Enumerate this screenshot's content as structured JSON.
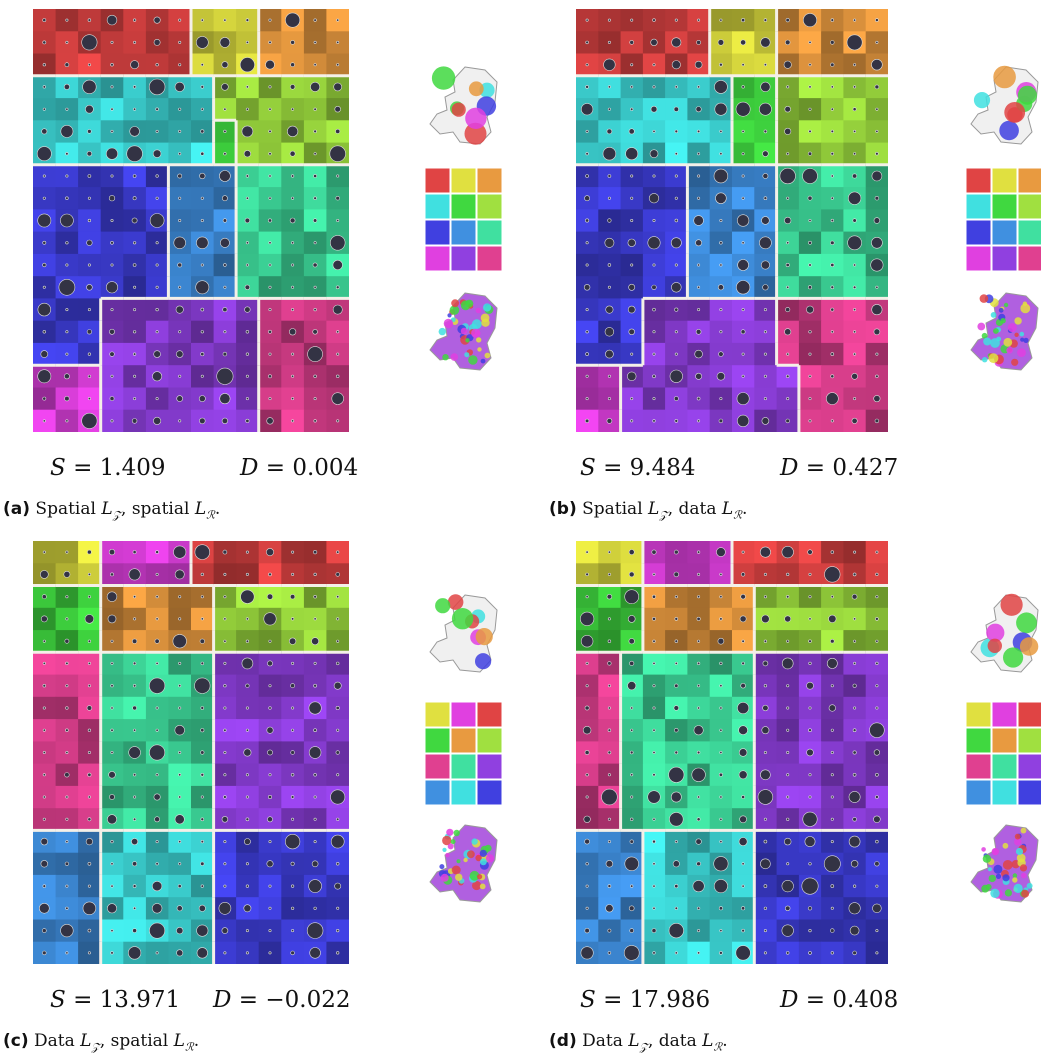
{
  "panels": [
    {
      "id": "a",
      "S": "1.409",
      "D": "0.004",
      "label": "(a)",
      "caption": "Spatial L_Z, spatial L_R."
    },
    {
      "id": "b",
      "S": "9.484",
      "D": "0.427",
      "label": "(b)",
      "caption": "Spatial L_Z, data L_R."
    },
    {
      "id": "c",
      "S": "13.971",
      "D": "−0.022",
      "label": "(c)",
      "caption": "Data L_Z, spatial L_R."
    },
    {
      "id": "d",
      "S": "17.986",
      "D": "0.408",
      "label": "(d)",
      "caption": "Data L_Z, data L_R."
    }
  ],
  "text": {
    "s_prefix": "S = ",
    "d_prefix": "D = "
  },
  "colors": {
    "red": "#e04444",
    "yellow": "#e0e040",
    "orange": "#e89a40",
    "cyan": "#40e0e0",
    "green": "#40d840",
    "lime": "#a0e040",
    "blue": "#4040e0",
    "skyblue": "#4090e0",
    "mint": "#40e0a0",
    "magenta": "#e040e0",
    "violet": "#9040e0",
    "pink": "#e04090"
  },
  "legends": [
    [
      "red",
      "yellow",
      "orange",
      "cyan",
      "green",
      "lime",
      "blue",
      "skyblue",
      "mint",
      "magenta",
      "violet",
      "pink"
    ],
    [
      "red",
      "yellow",
      "orange",
      "cyan",
      "green",
      "lime",
      "blue",
      "skyblue",
      "mint",
      "magenta",
      "violet",
      "pink"
    ],
    [
      "yellow",
      "magenta",
      "red",
      "green",
      "orange",
      "lime",
      "pink",
      "mint",
      "violet",
      "skyblue",
      "cyan",
      "blue"
    ],
    [
      "yellow",
      "magenta",
      "red",
      "green",
      "orange",
      "lime",
      "pink",
      "mint",
      "violet",
      "skyblue",
      "cyan",
      "blue"
    ]
  ]
}
